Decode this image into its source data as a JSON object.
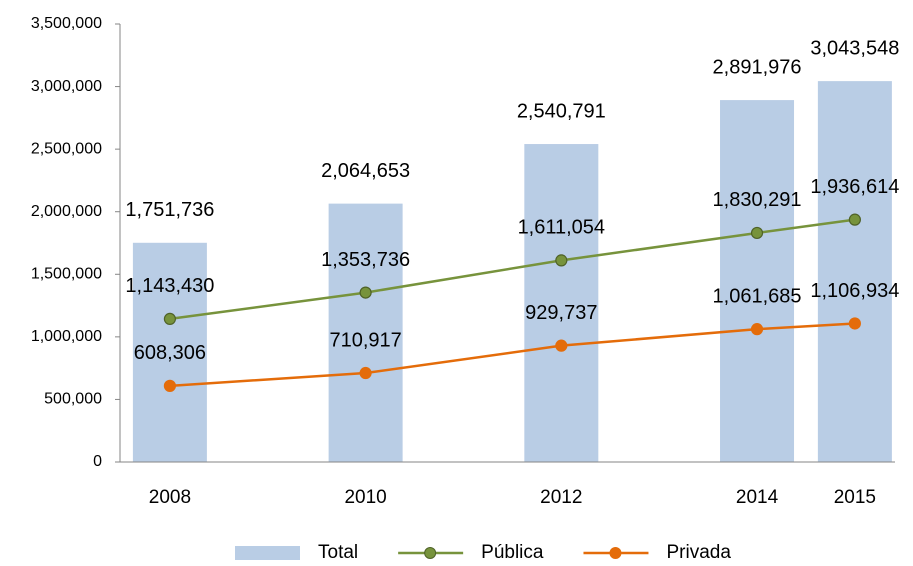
{
  "chart_data": {
    "type": "combo",
    "x": [
      2008,
      2010,
      2012,
      2014,
      2015
    ],
    "xlim": [
      2007.49,
      2015.41
    ],
    "xticks": [
      2008,
      2010,
      2012,
      2014,
      2015
    ],
    "ylim": [
      0,
      3500000
    ],
    "yticks": [
      0,
      {
        "value": 500000,
        "label": "500,000"
      },
      {
        "value": 1000000,
        "label": "1,000,000"
      },
      {
        "value": 1500000,
        "label": "1,500,000"
      },
      {
        "value": 2000000,
        "label": "2,000,000"
      },
      {
        "value": 2500000,
        "label": "2,500,000"
      },
      {
        "value": 3000000,
        "label": "3,000,000"
      },
      {
        "value": 3500000,
        "label": "3,500,000"
      }
    ],
    "legend": "bottom",
    "series": [
      {
        "name": "Total",
        "type": "bar",
        "color": "#b9cde5",
        "values": [
          1751736,
          2064653,
          2540791,
          2891976,
          3043548
        ],
        "value_labels": [
          "1,751,736",
          "2,064,653",
          "2,540,791",
          "2,891,976",
          "3,043,548"
        ]
      },
      {
        "name": "Pública",
        "type": "line",
        "color": "#77933c",
        "values": [
          1143430,
          1353736,
          1611054,
          1830291,
          1936614
        ],
        "value_labels": [
          "1,143,430",
          "1,353,736",
          "1,611,054",
          "1,830,291",
          "1,936,614"
        ]
      },
      {
        "name": "Privada",
        "type": "line",
        "color": "#e46c0a",
        "values": [
          608306,
          710917,
          929737,
          1061685,
          1106934
        ],
        "value_labels": [
          "608,306",
          "710,917",
          "929,737",
          "1,061,685",
          "1,106,934"
        ]
      }
    ]
  }
}
